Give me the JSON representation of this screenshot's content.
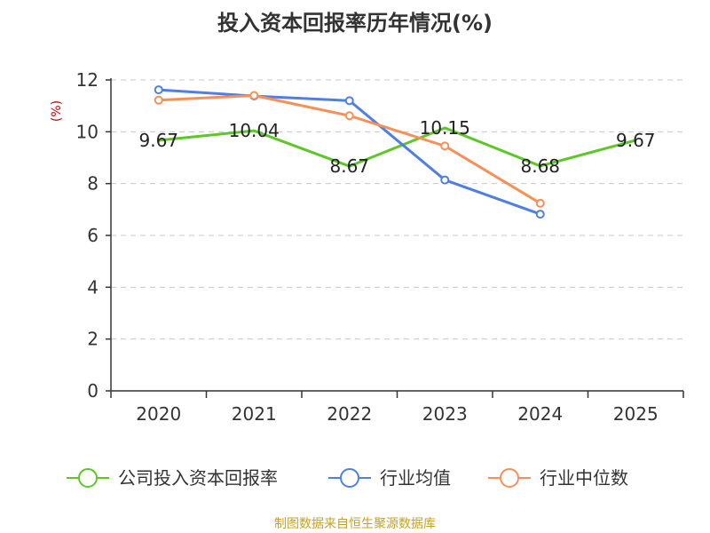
{
  "chart_data": {
    "type": "line",
    "title": "投入资本回报率历年情况(%)",
    "ylabel": "(%)",
    "xlabel": "",
    "categories": [
      "2020",
      "2021",
      "2022",
      "2023",
      "2024",
      "2025"
    ],
    "ylim": [
      0,
      12
    ],
    "yticks": [
      0,
      2,
      4,
      6,
      8,
      10,
      12
    ],
    "grid": true,
    "legend_position": "bottom",
    "series": [
      {
        "name": "公司投入资本回报率",
        "color": "#5cc726",
        "values": [
          9.67,
          10.04,
          8.67,
          10.15,
          8.68,
          9.67
        ],
        "labels": [
          "9.67",
          "10.04",
          "8.67",
          "10.15",
          "8.68",
          "9.67"
        ],
        "show_points": false,
        "show_labels": true
      },
      {
        "name": "行业均值",
        "color": "#4f7fe0",
        "values": [
          11.62,
          11.38,
          11.2,
          8.14,
          6.82,
          null
        ],
        "show_points": true,
        "show_labels": false
      },
      {
        "name": "行业中位数",
        "color": "#f88f57",
        "values": [
          11.22,
          11.4,
          10.62,
          9.45,
          7.24,
          null
        ],
        "show_points": true,
        "show_labels": false
      }
    ]
  },
  "source": "制图数据来自恒生聚源数据库"
}
